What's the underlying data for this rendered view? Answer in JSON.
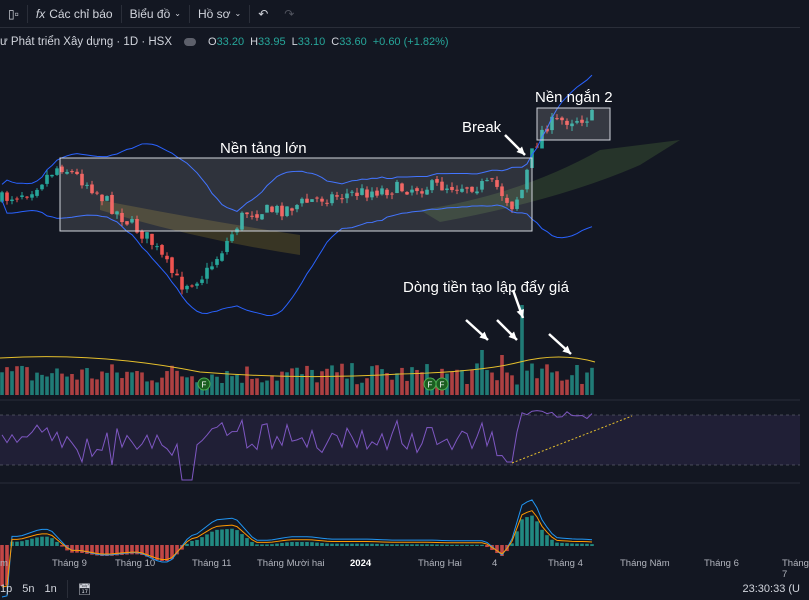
{
  "toolbar": {
    "indicators_label": "Các chỉ báo",
    "chart_label": "Biểu đồ",
    "profile_label": "Hồ sơ"
  },
  "legend": {
    "symbol": "ư Phát triển Xây dựng · 1D · HSX",
    "o_label": "O",
    "o": "33.20",
    "h_label": "H",
    "h": "33.95",
    "l_label": "L",
    "l": "33.10",
    "c_label": "C",
    "c": "33.60",
    "change": "+0.60 (+1.82%)"
  },
  "annotations": {
    "big_base": "Nền tảng lớn",
    "short_base": "Nền ngắn 2",
    "break": "Break",
    "money_flow": "Dòng tiền tạo lập đẩy giá"
  },
  "events": {
    "marker": "F"
  },
  "time_axis": [
    "m",
    "Tháng 9",
    "Tháng 10",
    "Tháng 11",
    "Tháng Mười hai",
    "2024",
    "Tháng Hai",
    "4",
    "Tháng 4",
    "Tháng Năm",
    "Tháng 6",
    "Tháng 7"
  ],
  "bottom": {
    "ranges": [
      "1p",
      "5n",
      "1n"
    ],
    "clock": "23:30:33 (U"
  },
  "colors": {
    "up": "#26a69a",
    "down": "#ef5350",
    "bb": "#2962ff",
    "rsi": "#7e57c2",
    "macd": "#2196f3",
    "signal": "#ff9800"
  }
}
